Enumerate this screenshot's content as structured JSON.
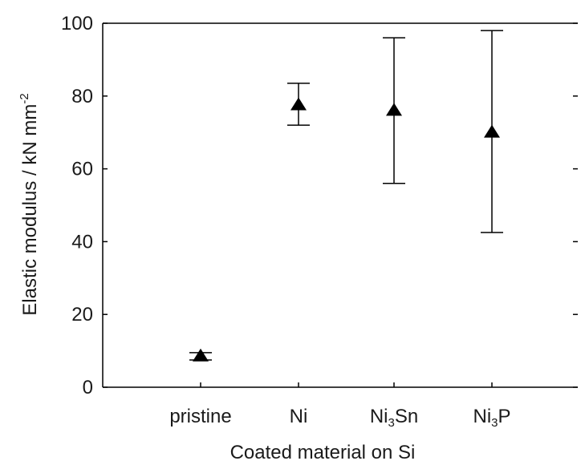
{
  "chart_data": {
    "type": "scatter",
    "categories": [
      "pristine",
      "Ni",
      "Ni3Sn",
      "Ni3P"
    ],
    "category_labels": [
      {
        "base": "pristine",
        "sub": "",
        "tail": ""
      },
      {
        "base": "Ni",
        "sub": "",
        "tail": ""
      },
      {
        "base": "Ni",
        "sub": "3",
        "tail": "Sn"
      },
      {
        "base": "Ni",
        "sub": "3",
        "tail": "P"
      }
    ],
    "series": [
      {
        "marker": "triangle",
        "color": "#000000",
        "values": [
          8.5,
          77.5,
          76,
          70
        ],
        "error_low": [
          7.5,
          72,
          56,
          42.5
        ],
        "error_high": [
          9.5,
          83.5,
          96,
          98
        ]
      }
    ],
    "xlabel": "Coated material on Si",
    "ylabel": {
      "base": "Elastic modulus / kN mm",
      "sup": "-2"
    },
    "ylim": [
      0,
      100
    ],
    "yticks": [
      0,
      20,
      40,
      60,
      80,
      100
    ],
    "ytick_labels": [
      "0",
      "20",
      "40",
      "60",
      "80",
      "100"
    ],
    "grid": false
  }
}
